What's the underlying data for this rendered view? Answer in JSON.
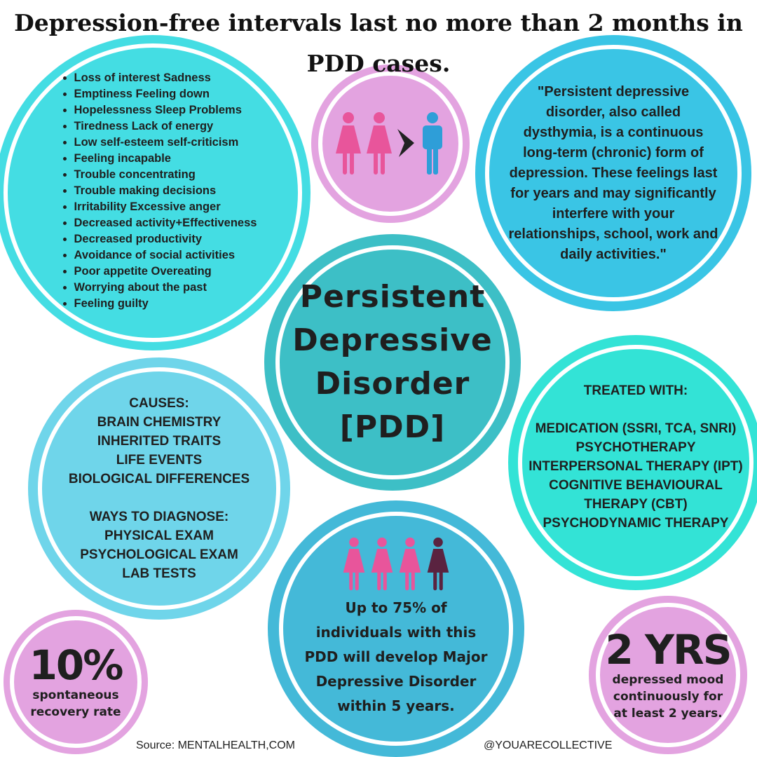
{
  "title": "Depression-free intervals last no more than 2 months in PDD cases.",
  "colors": {
    "symptoms": "#44dde3",
    "gender": "#e3a3e0",
    "quote": "#3ac5e5",
    "center": "#3dbfc6",
    "causes": "#6fd5ea",
    "treated": "#33e3d6",
    "bottom": "#44b9d8",
    "female": "#e8559b",
    "male": "#2e9ed8",
    "female_dark": "#5a2340"
  },
  "symptoms": [
    "Loss of interest  Sadness",
    "Emptiness Feeling down",
    "Hopelessness Sleep Problems",
    "Tiredness Lack of energy",
    "Low self-esteem self-criticism",
    "Feeling incapable",
    "Trouble concentrating",
    "Trouble making decisions",
    "Irritability  Excessive anger",
    "Decreased activity+Effectiveness",
    "Decreased productivity",
    "Avoidance of social activities",
    "Poor appetite  Overeating",
    "Worrying about the past",
    "Feeling guilty"
  ],
  "gender_icons": [
    "female-icon",
    "female-icon",
    "greater-than-icon",
    "male-icon"
  ],
  "quote": "\"Persistent depressive disorder, also called dysthymia, is a continuous long-term (chronic) form of depression. These feelings last for years and may significantly interfere with your relationships, school, work and daily activities.\"",
  "center": {
    "lines": [
      "Persistent",
      "Depressive",
      "Disorder",
      "[PDD]"
    ]
  },
  "causes": {
    "heading": "CAUSES:",
    "items": [
      "BRAIN CHEMISTRY",
      "INHERITED TRAITS",
      "LIFE EVENTS",
      "BIOLOGICAL DIFFERENCES"
    ],
    "diagnose_heading": "WAYS TO DIAGNOSE:",
    "diagnose_items": [
      "PHYSICAL EXAM",
      "PSYCHOLOGICAL EXAM",
      "LAB TESTS"
    ]
  },
  "treated": {
    "heading": "TREATED WITH:",
    "items": [
      "MEDICATION (SSRI, TCA, SNRI)",
      "PSYCHOTHERAPY",
      "INTERPERSONAL THERAPY (IPT)",
      "COGNITIVE BEHAVIOURAL",
      "THERAPY (CBT)",
      "PSYCHODYNAMIC THERAPY"
    ]
  },
  "bottom": {
    "stat_fraction": 0.75,
    "lines": [
      "Up to 75% of",
      "individuals with this",
      "PDD will develop Major",
      "Depressive Disorder",
      "within 5 years."
    ]
  },
  "recovery": {
    "value": "10%",
    "lines": [
      "spontaneous",
      "recovery rate"
    ]
  },
  "duration": {
    "value": "2 YRS",
    "lines": [
      "depressed mood",
      "continuously for",
      "at least 2 years."
    ]
  },
  "footer": {
    "source": "Source: MENTALHEALTH,COM",
    "handle": "@YOUARECOLLECTIVE"
  }
}
